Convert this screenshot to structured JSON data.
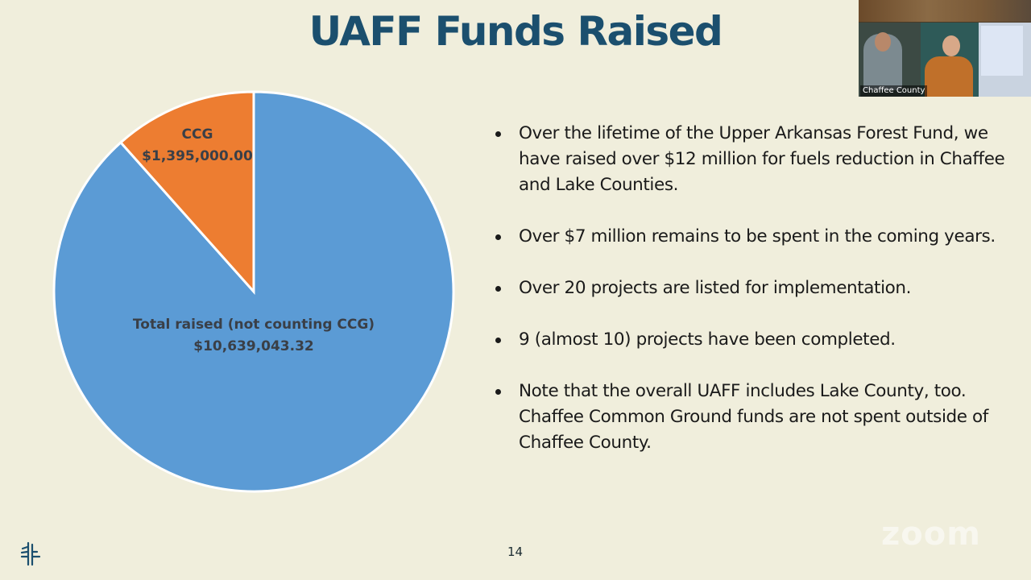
{
  "slide": {
    "title": "UAFF Funds Raised",
    "page_number": "14",
    "bullets": [
      "Over the lifetime of the Upper Arkansas Forest Fund, we have raised over $12 million for fuels reduction in Chaffee and Lake Counties.",
      "Over $7 million remains to be spent in the coming years.",
      "Over 20 projects are listed for implementation.",
      "9 (almost 10) projects have been completed.",
      "Note that the overall UAFF includes Lake County, too. Chaffee Common Ground funds are not spent outside of Chaffee County."
    ],
    "watermark": "zoom"
  },
  "video": {
    "participant_name": "Chaffee County"
  },
  "colors": {
    "background": "#f0eedc",
    "title": "#1b4f6e",
    "ccg_slice": "#ed7d31",
    "total_slice": "#5b9bd5"
  },
  "chart_data": {
    "type": "pie",
    "title": "UAFF Funds Raised",
    "categories": [
      "CCG",
      "Total raised (not counting CCG)"
    ],
    "values": [
      1395000.0,
      10639043.32
    ],
    "value_labels": [
      "$1,395,000.00",
      "$10,639,043.32"
    ],
    "colors": [
      "#ed7d31",
      "#5b9bd5"
    ],
    "legend": "none (data labels inside slices)",
    "start_angle": "12 o'clock, CCG slice counter-clockwise"
  }
}
